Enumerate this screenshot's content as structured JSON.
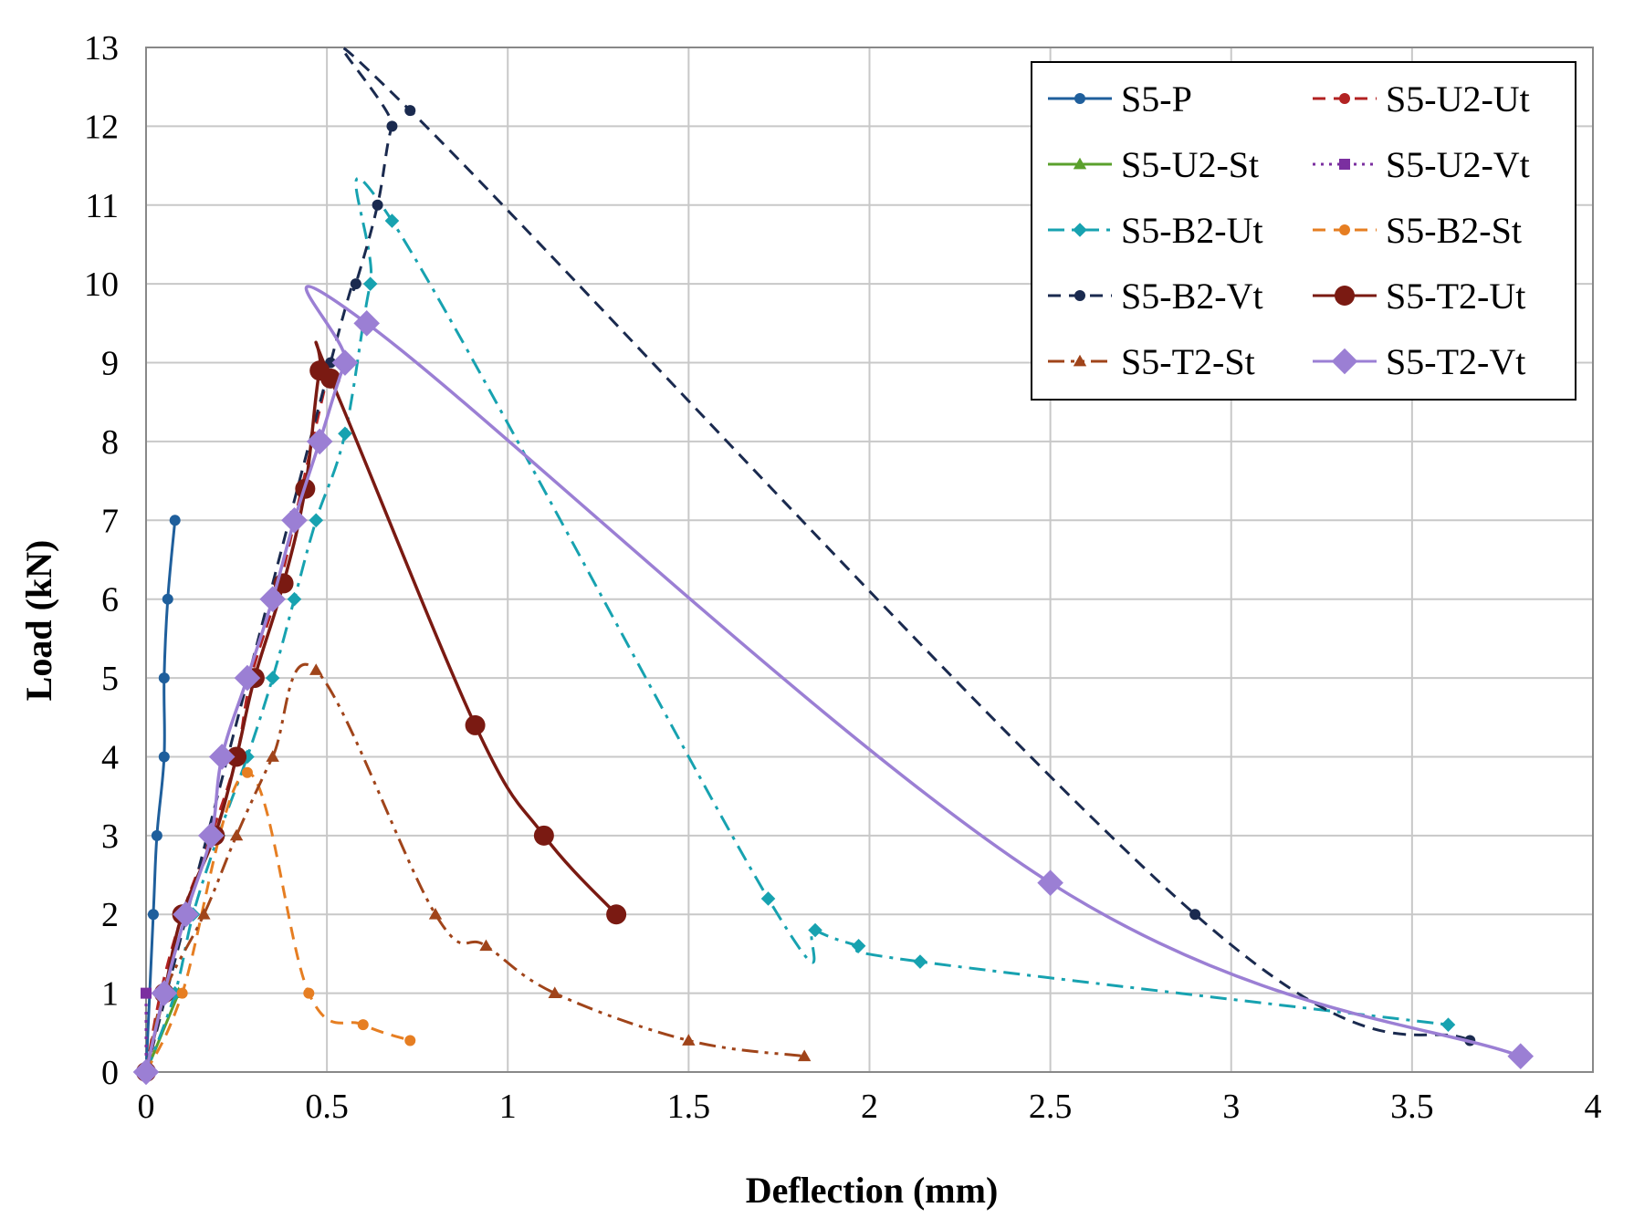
{
  "chart_data": {
    "type": "line",
    "title": "",
    "xlabel": "Deflection (mm)",
    "ylabel": "Load (kN)",
    "xlim": [
      0,
      4
    ],
    "ylim": [
      0,
      13
    ],
    "xticks": [
      0,
      0.5,
      1,
      1.5,
      2,
      2.5,
      3,
      3.5,
      4
    ],
    "xtick_labels": [
      "0",
      "0.5",
      "1",
      "1.5",
      "2",
      "2.5",
      "3",
      "3.5",
      "4"
    ],
    "yticks": [
      0,
      1,
      2,
      3,
      4,
      5,
      6,
      7,
      8,
      9,
      10,
      11,
      12,
      13
    ],
    "ytick_labels": [
      "0",
      "1",
      "2",
      "3",
      "4",
      "5",
      "6",
      "7",
      "8",
      "9",
      "10",
      "11",
      "12",
      "13"
    ],
    "grid": true,
    "legend_position": "top-right",
    "series": [
      {
        "name": "S5-P",
        "color": "#1f5f9c",
        "dash": "solid",
        "marker": "circle",
        "marker_size": "small",
        "x": [
          0,
          0.02,
          0.03,
          0.05,
          0.05,
          0.06,
          0.08
        ],
        "y": [
          0,
          2,
          3,
          4,
          5,
          6,
          7
        ]
      },
      {
        "name": "S5-U2-Ut",
        "color": "#b22222",
        "dash": "dashed",
        "marker": "circle",
        "marker_size": "small",
        "x": [
          0,
          0.04,
          0.1,
          0.18,
          0.25,
          0.29,
          0.37,
          0.43,
          0.5
        ],
        "y": [
          0,
          1,
          2,
          3,
          4,
          5,
          6.2,
          7.4,
          8.8
        ]
      },
      {
        "name": "S5-U2-St",
        "color": "#5aa02c",
        "dash": "solid",
        "marker": "triangle",
        "marker_size": "small",
        "x": [
          0,
          0.09
        ],
        "y": [
          0,
          1
        ]
      },
      {
        "name": "S5-U2-Vt",
        "color": "#7b2fa0",
        "dash": "dotted",
        "marker": "square",
        "marker_size": "small",
        "x": [
          0,
          0.0
        ],
        "y": [
          0,
          1
        ]
      },
      {
        "name": "S5-B2-Ut",
        "color": "#17a2b0",
        "dash": "dashdot",
        "marker": "diamond",
        "marker_size": "small",
        "x": [
          0,
          0.08,
          0.13,
          0.2,
          0.28,
          0.35,
          0.41,
          0.47,
          0.55,
          0.62,
          0.68,
          1.72,
          1.85,
          1.97,
          2.14,
          3.6
        ],
        "y": [
          0,
          1,
          2,
          3,
          4,
          5,
          6,
          7,
          8.1,
          10,
          10.8,
          2.2,
          1.8,
          1.6,
          1.4,
          0.6
        ]
      },
      {
        "name": "S5-B2-St",
        "color": "#e67e22",
        "dash": "dashed",
        "marker": "circle",
        "marker_size": "small",
        "x": [
          0,
          0.1,
          0.28,
          0.45,
          0.6,
          0.73
        ],
        "y": [
          0,
          1,
          3.8,
          1,
          0.6,
          0.4
        ]
      },
      {
        "name": "S5-B2-Vt",
        "color": "#1a2a4f",
        "dash": "dashed",
        "marker": "circle",
        "marker_size": "small",
        "x": [
          0,
          0.51,
          0.58,
          0.64,
          0.68,
          0.73,
          2.9,
          3.66
        ],
        "y": [
          0,
          9,
          10,
          11,
          12,
          12.2,
          2,
          0.4
        ]
      },
      {
        "name": "S5-T2-Ut",
        "color": "#7a1a12",
        "dash": "solid",
        "marker": "circle",
        "marker_size": "large",
        "x": [
          0,
          0.05,
          0.1,
          0.19,
          0.25,
          0.3,
          0.38,
          0.44,
          0.48,
          0.51,
          0.91,
          1.1,
          1.3
        ],
        "y": [
          0,
          1,
          2,
          3,
          4,
          5,
          6.2,
          7.4,
          8.9,
          8.8,
          4.4,
          3,
          2
        ]
      },
      {
        "name": "S5-T2-St",
        "color": "#a0441a",
        "dash": "dashdotdot",
        "marker": "triangle",
        "marker_size": "small",
        "x": [
          0,
          0.05,
          0.16,
          0.25,
          0.35,
          0.47,
          0.8,
          0.94,
          1.13,
          1.5,
          1.82
        ],
        "y": [
          0,
          1,
          2,
          3,
          4,
          5.1,
          2,
          1.6,
          1,
          0.4,
          0.2
        ]
      },
      {
        "name": "S5-T2-Vt",
        "color": "#9b7fd4",
        "dash": "solid",
        "marker": "diamond",
        "marker_size": "large",
        "x": [
          0,
          0.05,
          0.11,
          0.18,
          0.21,
          0.28,
          0.35,
          0.41,
          0.48,
          0.55,
          0.61,
          2.5,
          3.8
        ],
        "y": [
          0,
          1,
          2,
          3,
          4,
          5,
          6,
          7,
          8,
          9,
          9.5,
          2.4,
          0.2
        ]
      }
    ]
  }
}
